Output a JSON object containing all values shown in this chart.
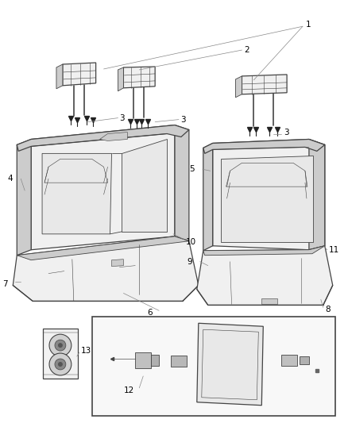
{
  "background_color": "#ffffff",
  "line_color": "#444444",
  "label_color": "#000000",
  "fig_width": 4.38,
  "fig_height": 5.33,
  "dpi": 100,
  "label_fontsize": 7.5,
  "annotation_line_color": "#888888",
  "seat_fill": "#f0f0f0",
  "seat_dark": "#cccccc",
  "seat_inner": "#e8e8e8"
}
